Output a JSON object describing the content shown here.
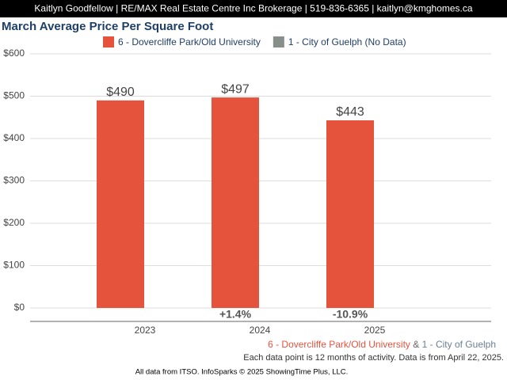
{
  "header": "Kaitlyn Goodfellow | RE/MAX Real Estate Centre Inc Brokerage | 519-836-6365 | kaitlyn@kmghomes.ca",
  "chart_data": {
    "type": "bar",
    "title": "March Average Price Per Square Foot",
    "categories": [
      "2023",
      "2024",
      "2025"
    ],
    "series": [
      {
        "name": "6 - Dovercliffe Park/Old University",
        "color": "#e5533d",
        "values": [
          490,
          497,
          443
        ],
        "value_labels": [
          "$490",
          "$497",
          "$443"
        ]
      },
      {
        "name": "1 - City of Guelph (No Data)",
        "color": "#888e8a",
        "values": [
          null,
          null,
          null
        ]
      }
    ],
    "change_labels": [
      null,
      "+1.4%",
      "-10.9%"
    ],
    "ylim": [
      0,
      600
    ],
    "yticks": [
      {
        "value": 0,
        "label": "$0"
      },
      {
        "value": 100,
        "label": "$100"
      },
      {
        "value": 200,
        "label": "$200"
      },
      {
        "value": 300,
        "label": "$300"
      },
      {
        "value": 400,
        "label": "$400"
      },
      {
        "value": 500,
        "label": "$500"
      },
      {
        "value": 600,
        "label": "$600"
      }
    ],
    "grid": true
  },
  "footer": {
    "area_1": "6 - Dovercliffe Park/Old University",
    "join": "&",
    "area_2": "1 - City of Guelph",
    "note": "Each data point is 12 months of activity. Data is from April 22, 2025.",
    "source": "All data from ITSO. InfoSparks © 2025 ShowingTime Plus, LLC."
  }
}
